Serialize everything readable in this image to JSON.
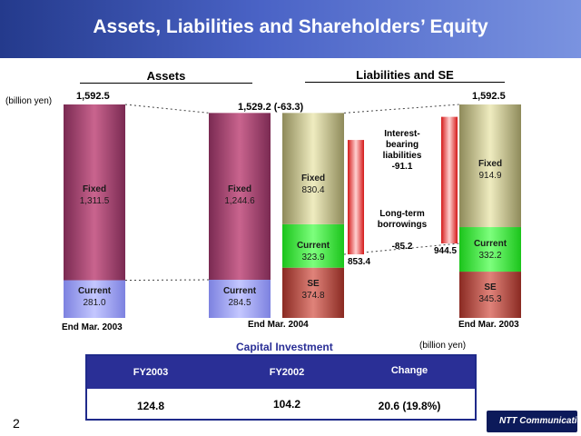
{
  "page": {
    "title": "Assets, Liabilities and Shareholders’ Equity",
    "page_number": "2",
    "logo_text": "NTT Communications"
  },
  "chart_data": {
    "type": "bar",
    "unit_label": "(billion yen)",
    "section_titles": [
      "Assets",
      "Liabilities and SE"
    ],
    "columns": [
      {
        "category": "End Mar. 2003",
        "group": "Assets",
        "total": "1,592.5",
        "segments": [
          {
            "name": "Fixed",
            "value": 1311.5,
            "label": "1,311.5"
          },
          {
            "name": "Current",
            "value": 281.0,
            "label": "281.0"
          }
        ]
      },
      {
        "category": "End Mar. 2004",
        "group": "Assets",
        "total": "1,529.2 (-63.3)",
        "segments": [
          {
            "name": "Fixed",
            "value": 1244.6,
            "label": "1,244.6"
          },
          {
            "name": "Current",
            "value": 284.5,
            "label": "284.5"
          }
        ]
      },
      {
        "category": "End Mar. 2004",
        "group": "Liabilities and SE",
        "segments": [
          {
            "name": "Fixed",
            "value": 830.4,
            "label": "830.4"
          },
          {
            "name": "Current",
            "value": 323.9,
            "label": "323.9"
          },
          {
            "name": "SE",
            "value": 374.8,
            "label": "374.8"
          }
        ]
      },
      {
        "category": "End Mar. 2003",
        "group": "Liabilities and SE",
        "total": "1,592.5",
        "segments": [
          {
            "name": "Fixed",
            "value": 914.9,
            "label": "914.9"
          },
          {
            "name": "Current",
            "value": 332.2,
            "label": "332.2"
          },
          {
            "name": "SE",
            "value": 345.3,
            "label": "345.3"
          }
        ]
      }
    ],
    "category_labels": [
      "End Mar. 2003",
      "End Mar. 2004",
      "End Mar. 2003"
    ],
    "interest_bearing": {
      "label": "Interest-bearing liabilities",
      "change": "-91.1",
      "value_2004": "853.4",
      "value_2003": "944.5"
    },
    "long_term": {
      "label": "Long-term borrowings",
      "change": "-85.2"
    },
    "colors": {
      "assets_fixed": "#a84470",
      "assets_current": "#9fa3f0",
      "liab_fixed": "#c8c48a",
      "liab_current": "#33ee33",
      "se": "#b04840",
      "interest_bar": "#ee2a2a",
      "table_header": "#2a2f96"
    }
  },
  "capital_investment": {
    "title": "Capital Investment",
    "unit_label": "(billion yen)",
    "headers": [
      "FY2003",
      "FY2002",
      "Change"
    ],
    "values": [
      "124.8",
      "104.2",
      "20.6 (19.8%)"
    ]
  }
}
